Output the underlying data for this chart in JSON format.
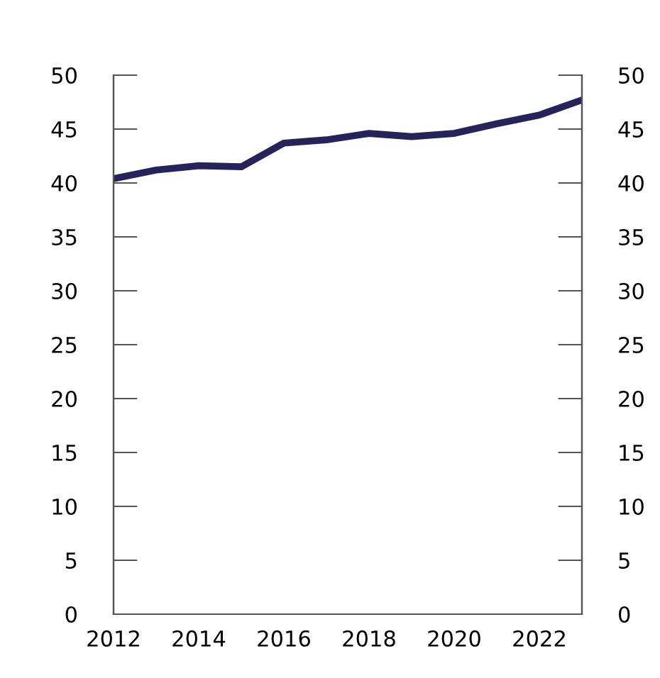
{
  "chart_data": {
    "type": "line",
    "x": [
      2012,
      2013,
      2014,
      2015,
      2016,
      2017,
      2018,
      2019,
      2020,
      2021,
      2022,
      2023
    ],
    "series": [
      {
        "color": "#25235a",
        "values": [
          40.4,
          41.2,
          41.6,
          41.5,
          43.7,
          44.0,
          44.6,
          44.3,
          44.6,
          45.5,
          46.3,
          47.7
        ]
      }
    ],
    "xlim": [
      2012,
      2023
    ],
    "xticks": [
      2012,
      2014,
      2016,
      2018,
      2020,
      2022
    ],
    "ylim": [
      0,
      50
    ],
    "yticks": [
      0,
      5,
      10,
      15,
      20,
      25,
      30,
      35,
      40,
      45,
      50
    ],
    "y2lim": [
      0,
      50
    ],
    "y2ticks": [
      0,
      5,
      10,
      15,
      20,
      25,
      30,
      35,
      40,
      45,
      50
    ],
    "marker": "none",
    "line_style": "solid"
  }
}
